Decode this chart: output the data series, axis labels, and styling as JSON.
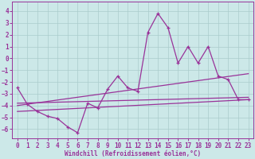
{
  "bg_color": "#cce8e8",
  "grid_color": "#aacccc",
  "line_color": "#993399",
  "spine_color": "#993399",
  "xlim": [
    -0.5,
    23.5
  ],
  "ylim": [
    -6.8,
    4.8
  ],
  "yticks": [
    4,
    3,
    2,
    1,
    0,
    -1,
    -2,
    -3,
    -4,
    -5,
    -6
  ],
  "xticks": [
    0,
    1,
    2,
    3,
    4,
    5,
    6,
    7,
    8,
    9,
    10,
    11,
    12,
    13,
    14,
    15,
    16,
    17,
    18,
    19,
    20,
    21,
    22,
    23
  ],
  "xlabel": "Windchill (Refroidissement éolien,°C)",
  "series1_x": [
    0,
    1,
    2,
    3,
    4,
    5,
    6,
    7,
    8,
    9,
    10,
    11,
    12,
    13,
    14,
    15,
    16,
    17,
    18,
    19,
    20,
    21,
    22,
    23
  ],
  "series1_y": [
    -2.5,
    -3.9,
    -4.5,
    -4.9,
    -5.1,
    -5.8,
    -6.3,
    -3.8,
    -4.2,
    -2.6,
    -1.5,
    -2.5,
    -2.8,
    2.2,
    3.8,
    2.6,
    -0.4,
    1.0,
    -0.4,
    1.0,
    -1.5,
    -1.8,
    -3.5,
    -3.5
  ],
  "line2_x": [
    0,
    23
  ],
  "line2_y": [
    -4.5,
    -3.5
  ],
  "line3_x": [
    0,
    23
  ],
  "line3_y": [
    -4.0,
    -1.3
  ],
  "line4_x": [
    0,
    23
  ],
  "line4_y": [
    -3.8,
    -3.3
  ],
  "tick_fontsize": 5.5,
  "label_fontsize": 5.5
}
